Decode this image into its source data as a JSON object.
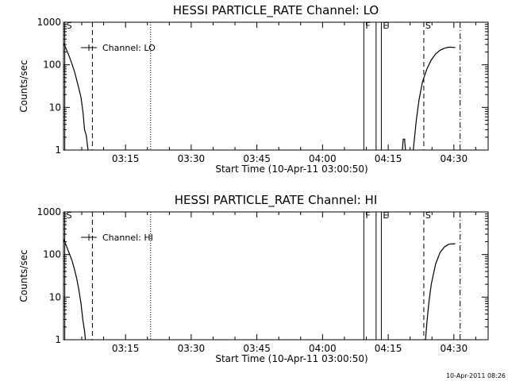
{
  "footer_timestamp": "10-Apr-2011 08:26",
  "chart_data": [
    {
      "type": "line",
      "title": "HESSI PARTICLE_RATE Channel: LO",
      "xlabel": "Start Time (10-Apr-11 03:00:50)",
      "ylabel": "Counts/sec",
      "yscale": "log",
      "ylim": [
        1,
        1000
      ],
      "xlim": [
        0,
        97
      ],
      "x_unit": "minutes after 03:00:50",
      "x_ticks": [
        {
          "label": "03:15",
          "x": 14.17
        },
        {
          "label": "03:30",
          "x": 29.17
        },
        {
          "label": "03:45",
          "x": 44.17
        },
        {
          "label": "04:00",
          "x": 59.17
        },
        {
          "label": "04:15",
          "x": 74.17
        },
        {
          "label": "04:30",
          "x": 89.17
        }
      ],
      "y_ticks": [
        {
          "label": "1",
          "y": 1
        },
        {
          "label": "10",
          "y": 10
        },
        {
          "label": "100",
          "y": 100
        },
        {
          "label": "1000",
          "y": 1000
        }
      ],
      "legend": {
        "label": "Channel: LO",
        "position": "top-left"
      },
      "series": [
        {
          "name": "Channel: LO",
          "segments": [
            [
              [
                0,
                320
              ],
              [
                0.5,
                250
              ],
              [
                1,
                190
              ],
              [
                1.5,
                140
              ],
              [
                2,
                100
              ],
              [
                2.5,
                70
              ],
              [
                3,
                45
              ],
              [
                3.5,
                28
              ],
              [
                4,
                17
              ],
              [
                4.5,
                7
              ],
              [
                4.8,
                3
              ],
              [
                5.2,
                2.2
              ],
              [
                5.6,
                1
              ]
            ],
            [
              [
                77.4,
                1
              ],
              [
                77.6,
                1.8
              ],
              [
                77.9,
                1.8
              ],
              [
                78.1,
                1
              ]
            ],
            [
              [
                79.9,
                1
              ],
              [
                80.2,
                2
              ],
              [
                80.6,
                5
              ],
              [
                81.2,
                15
              ],
              [
                82,
                40
              ],
              [
                83,
                80
              ],
              [
                84,
                130
              ],
              [
                85,
                180
              ],
              [
                86,
                220
              ],
              [
                87,
                245
              ],
              [
                88,
                260
              ],
              [
                89.5,
                255
              ]
            ]
          ]
        }
      ],
      "markers": [
        {
          "label": "S",
          "x": 0.3,
          "style": "solid"
        },
        {
          "label": "",
          "x": 6.6,
          "style": "dashed"
        },
        {
          "label": "",
          "x": 19.9,
          "style": "dotted"
        },
        {
          "label": "F",
          "x": 68.6,
          "style": "solid"
        },
        {
          "label": "",
          "x": 71.4,
          "style": "solid"
        },
        {
          "label": "E",
          "x": 72.6,
          "style": "solid"
        },
        {
          "label": "S",
          "x": 82.3,
          "style": "dashed"
        },
        {
          "label": "",
          "x": 90.6,
          "style": "dashdot"
        }
      ]
    },
    {
      "type": "line",
      "title": "HESSI PARTICLE_RATE Channel: HI",
      "xlabel": "Start Time (10-Apr-11 03:00:50)",
      "ylabel": "Counts/sec",
      "yscale": "log",
      "ylim": [
        1,
        1000
      ],
      "xlim": [
        0,
        97
      ],
      "x_unit": "minutes after 03:00:50",
      "x_ticks": [
        {
          "label": "03:15",
          "x": 14.17
        },
        {
          "label": "03:30",
          "x": 29.17
        },
        {
          "label": "03:45",
          "x": 44.17
        },
        {
          "label": "04:00",
          "x": 59.17
        },
        {
          "label": "04:15",
          "x": 74.17
        },
        {
          "label": "04:30",
          "x": 89.17
        }
      ],
      "y_ticks": [
        {
          "label": "1",
          "y": 1
        },
        {
          "label": "10",
          "y": 10
        },
        {
          "label": "100",
          "y": 100
        },
        {
          "label": "1000",
          "y": 1000
        }
      ],
      "legend": {
        "label": "Channel: HI",
        "position": "top-left"
      },
      "series": [
        {
          "name": "Channel: HI",
          "segments": [
            [
              [
                0,
                230
              ],
              [
                0.5,
                175
              ],
              [
                1,
                130
              ],
              [
                1.5,
                95
              ],
              [
                2,
                70
              ],
              [
                2.5,
                45
              ],
              [
                3,
                28
              ],
              [
                3.5,
                15
              ],
              [
                4,
                7
              ],
              [
                4.4,
                3
              ],
              [
                4.8,
                1.6
              ],
              [
                5.0,
                1
              ]
            ],
            [
              [
                82.7,
                1
              ],
              [
                83,
                2.5
              ],
              [
                83.5,
                8
              ],
              [
                84,
                20
              ],
              [
                85,
                60
              ],
              [
                86,
                110
              ],
              [
                87,
                150
              ],
              [
                88,
                175
              ],
              [
                89.5,
                180
              ]
            ]
          ]
        }
      ],
      "markers": [
        {
          "label": "S",
          "x": 0.3,
          "style": "solid"
        },
        {
          "label": "",
          "x": 6.6,
          "style": "dashed"
        },
        {
          "label": "",
          "x": 19.9,
          "style": "dotted"
        },
        {
          "label": "F",
          "x": 68.6,
          "style": "solid"
        },
        {
          "label": "",
          "x": 71.4,
          "style": "solid"
        },
        {
          "label": "E",
          "x": 72.6,
          "style": "solid"
        },
        {
          "label": "S",
          "x": 82.3,
          "style": "dashed"
        },
        {
          "label": "",
          "x": 90.6,
          "style": "dashdot"
        }
      ]
    }
  ]
}
